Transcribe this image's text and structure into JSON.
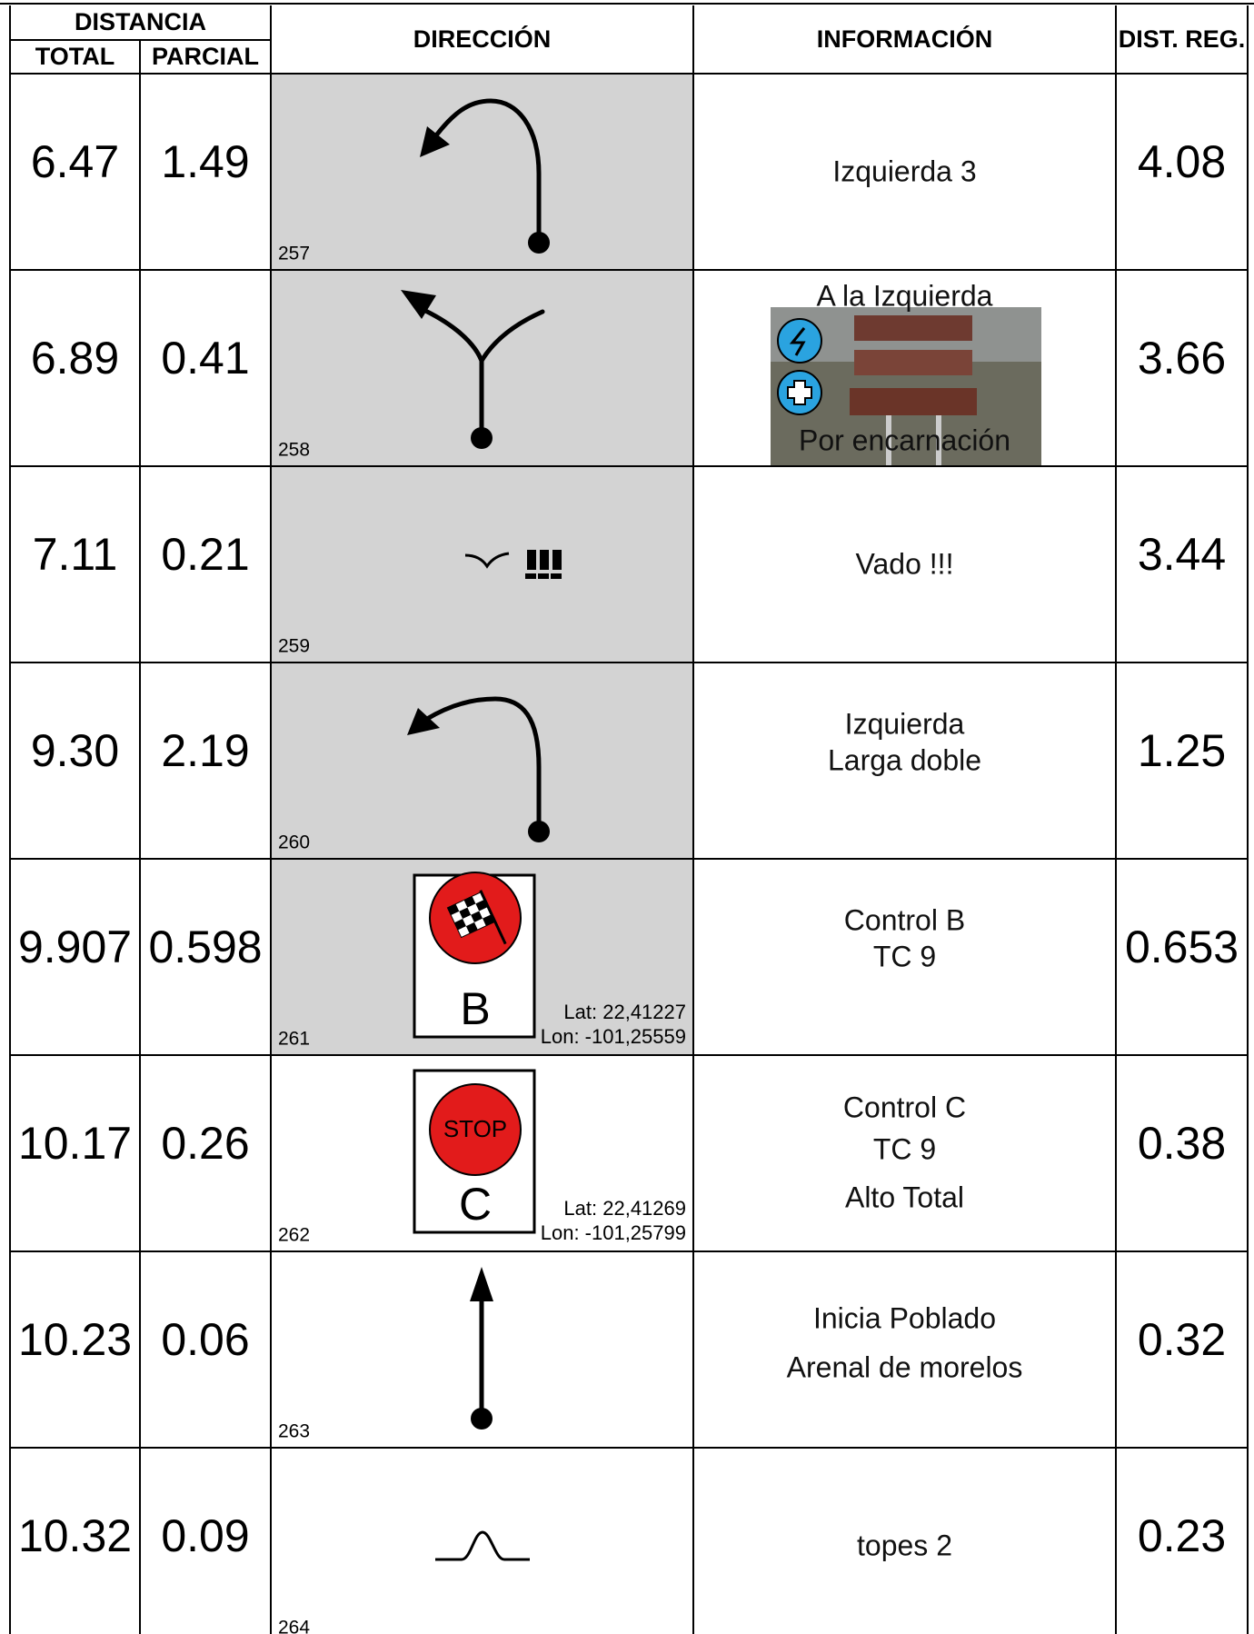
{
  "header": {
    "distancia": "DISTANCIA",
    "total": "TOTAL",
    "parcial": "PARCIAL",
    "direccion": "DIRECCIÓN",
    "informacion": "INFORMACIÓN",
    "dist_reg": "DIST. REG."
  },
  "rows": [
    {
      "total": "6.47",
      "parcial": "1.49",
      "number": "257",
      "info": [
        "Izquierda 3"
      ],
      "dist_reg": "4.08"
    },
    {
      "total": "6.89",
      "parcial": "0.41",
      "number": "258",
      "info": [
        "A la Izquierda",
        "Por encarnación"
      ],
      "dist_reg": "3.66"
    },
    {
      "total": "7.11",
      "parcial": "0.21",
      "number": "259",
      "info": [
        "Vado !!!"
      ],
      "dist_reg": "3.44"
    },
    {
      "total": "9.30",
      "parcial": "2.19",
      "number": "260",
      "info": [
        "Izquierda",
        "Larga doble"
      ],
      "dist_reg": "1.25"
    },
    {
      "total": "9.907",
      "parcial": "0.598",
      "number": "261",
      "icon_labels": [
        "B"
      ],
      "lat": "Lat: 22,41227",
      "lon": "Lon: -101,25559",
      "info": [
        "Control B",
        "TC 9"
      ],
      "dist_reg": "0.653"
    },
    {
      "total": "10.17",
      "parcial": "0.26",
      "number": "262",
      "icon_labels": [
        "STOP",
        "C"
      ],
      "lat": "Lat: 22,41269",
      "lon": "Lon: -101,25799",
      "info": [
        "Control C",
        "TC 9",
        "Alto Total"
      ],
      "dist_reg": "0.38"
    },
    {
      "total": "10.23",
      "parcial": "0.06",
      "number": "263",
      "info": [
        "Inicia Poblado",
        "Arenal de morelos"
      ],
      "dist_reg": "0.32"
    },
    {
      "total": "10.32",
      "parcial": "0.09",
      "number": "264",
      "info": [
        "topes 2"
      ],
      "dist_reg": "0.23"
    }
  ]
}
